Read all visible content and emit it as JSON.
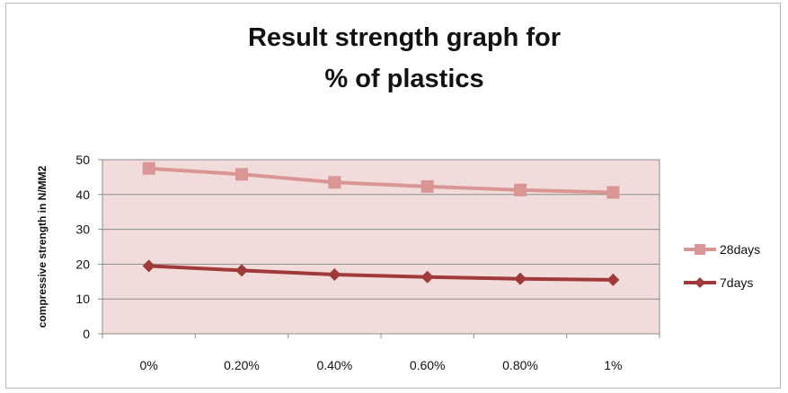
{
  "chart_data": {
    "type": "line",
    "title_line1": "Result  strength graph for",
    "title_line2": "% of plastics",
    "xlabel": "",
    "ylabel": "compressive strength in N/MM2",
    "categories": [
      "0%",
      "0.20%",
      "0.40%",
      "0.60%",
      "0.80%",
      "1%"
    ],
    "ylim": [
      0,
      50
    ],
    "yticks": [
      "0",
      "10",
      "20",
      "30",
      "40",
      "50"
    ],
    "grid": true,
    "legend_position": "right",
    "plot_background": "#f2dcdb",
    "series": [
      {
        "name": "28days",
        "values": [
          47.5,
          45.8,
          43.5,
          42.3,
          41.3,
          40.6
        ],
        "color": "#d99694",
        "marker": "square"
      },
      {
        "name": "7days",
        "values": [
          19.5,
          18.2,
          17.0,
          16.3,
          15.8,
          15.5
        ],
        "color": "#a0393a",
        "marker": "diamond"
      }
    ]
  }
}
